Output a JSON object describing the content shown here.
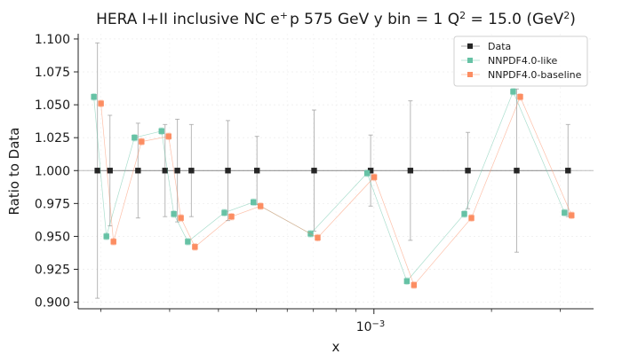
{
  "chart_data": {
    "type": "scatter",
    "title_parts": {
      "a": "HERA I+II inclusive NC e",
      "a_sup": "+",
      "b": "p 575 GeV y bin = 1 Q",
      "b_sup": "2",
      "c": " = 15.0 (GeV",
      "c_sup": "2",
      "d": ")"
    },
    "xlabel": "x",
    "ylabel": "Ratio to Data",
    "x_scale": "log",
    "xlim": [
      0.000175,
      0.00365
    ],
    "ylim": [
      0.895,
      1.104
    ],
    "x_tick_label": {
      "base": "10",
      "exp": "−3"
    },
    "y_ticks": [
      "0.900",
      "0.925",
      "0.950",
      "0.975",
      "1.000",
      "1.025",
      "1.050",
      "1.075",
      "1.100"
    ],
    "legend_position": "top-right",
    "x": [
      0.000196,
      0.000211,
      0.000249,
      0.000292,
      0.000314,
      0.000341,
      0.000423,
      0.000502,
      0.000703,
      0.000981,
      0.00124,
      0.00174,
      0.00232,
      0.00314
    ],
    "series": [
      {
        "name": "Data",
        "color": "#262626",
        "values": [
          1,
          1,
          1,
          1,
          1,
          1,
          1,
          1,
          1,
          1,
          1,
          1,
          1,
          1
        ],
        "errors": [
          0.097,
          0.042,
          0.036,
          0.035,
          0.039,
          0.035,
          0.038,
          0.026,
          0.046,
          0.027,
          0.053,
          0.029,
          0.062,
          0.035
        ]
      },
      {
        "name": "NNPDF4.0-like",
        "color": "#66c2a5",
        "values": [
          1.056,
          0.95,
          1.025,
          1.03,
          0.967,
          0.946,
          0.968,
          0.976,
          0.952,
          0.998,
          0.916,
          0.967,
          1.06,
          0.968
        ],
        "errors": [
          0.0025,
          0.0025,
          0.0025,
          0.0025,
          0.0025,
          0.0025,
          0.0025,
          0.0025,
          0.0025,
          0.0025,
          0.0025,
          0.0025,
          0.0025,
          0.0025
        ]
      },
      {
        "name": "NNPDF4.0-baseline",
        "color": "#fc8d62",
        "values": [
          1.051,
          0.946,
          1.022,
          1.026,
          0.964,
          0.942,
          0.965,
          0.973,
          0.949,
          0.995,
          0.913,
          0.964,
          1.056,
          0.966
        ],
        "errors": [
          0.0025,
          0.0025,
          0.0025,
          0.0025,
          0.0025,
          0.0025,
          0.0025,
          0.0025,
          0.0025,
          0.0025,
          0.0025,
          0.0025,
          0.0025,
          0.0025
        ]
      }
    ]
  }
}
